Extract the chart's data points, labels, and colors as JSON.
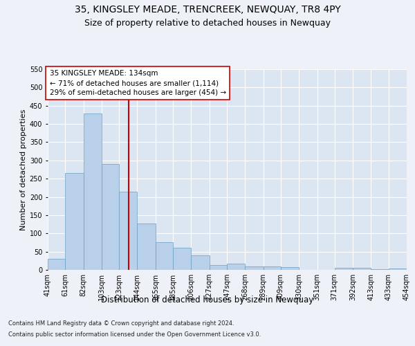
{
  "title": "35, KINGSLEY MEADE, TRENCREEK, NEWQUAY, TR8 4PY",
  "subtitle": "Size of property relative to detached houses in Newquay",
  "xlabel": "Distribution of detached houses by size in Newquay",
  "ylabel": "Number of detached properties",
  "footer_line1": "Contains HM Land Registry data © Crown copyright and database right 2024.",
  "footer_line2": "Contains public sector information licensed under the Open Government Licence v3.0.",
  "annotation_line1": "35 KINGSLEY MEADE: 134sqm",
  "annotation_line2": "← 71% of detached houses are smaller (1,114)",
  "annotation_line3": "29% of semi-detached houses are larger (454) →",
  "bar_edges": [
    41,
    61,
    82,
    103,
    123,
    144,
    165,
    185,
    206,
    227,
    247,
    268,
    289,
    309,
    330,
    351,
    371,
    392,
    413,
    433,
    454
  ],
  "bar_heights": [
    30,
    265,
    428,
    290,
    215,
    128,
    76,
    60,
    40,
    14,
    17,
    10,
    10,
    7,
    0,
    0,
    5,
    5,
    1,
    3
  ],
  "bar_color": "#b8d0ea",
  "bar_edge_color": "#6a9ec0",
  "vline_x": 134,
  "vline_color": "#cc0000",
  "ylim": [
    0,
    550
  ],
  "yticks": [
    0,
    50,
    100,
    150,
    200,
    250,
    300,
    350,
    400,
    450,
    500,
    550
  ],
  "bg_color": "#eef2f8",
  "plot_bg_color": "#dce6f2",
  "annotation_box_color": "#ffffff",
  "annotation_box_edge": "#cc0000",
  "title_fontsize": 10,
  "subtitle_fontsize": 9,
  "xlabel_fontsize": 8.5,
  "ylabel_fontsize": 8,
  "tick_fontsize": 7,
  "annotation_fontsize": 7.5,
  "footer_fontsize": 6
}
